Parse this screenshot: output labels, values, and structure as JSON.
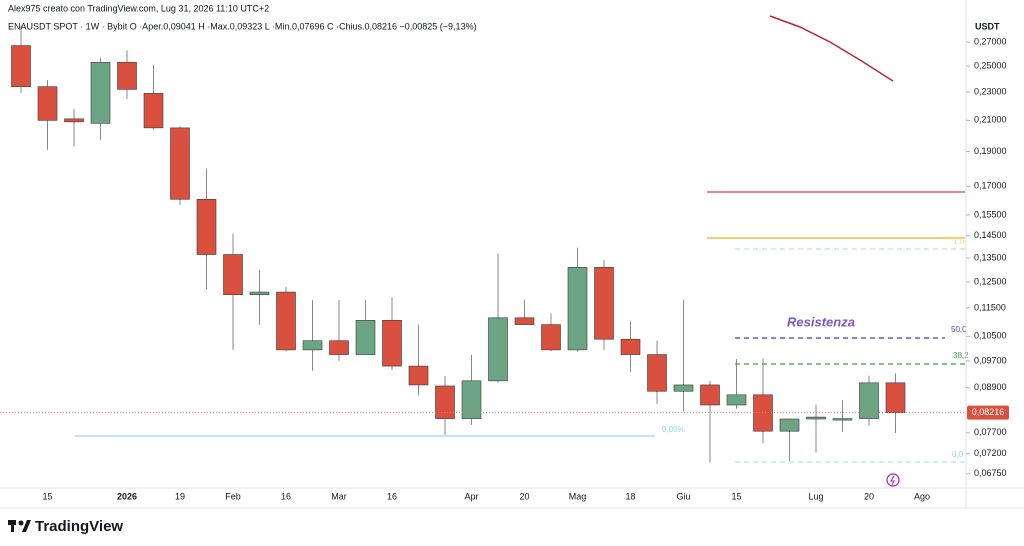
{
  "header": {
    "credit": "Alex975 creato con TradingView.com, Lug 31, 2026 11:10 UTC+2",
    "legend": "ENAUSDT SPOT · 1W · Bybit   O ·Aper.0,09041  H ·Max.0,09323  L ·Min.0,07696  C ·Chius.0,08216  −0,00825 (−9,13%)"
  },
  "chart_data": {
    "type": "candlestick",
    "y_axis_label": "USDT",
    "log_scale": true,
    "grid": false,
    "up_color": "#6ba583",
    "down_color": "#d9503f",
    "categories": [
      null,
      "15",
      null,
      null,
      "2026",
      null,
      "19",
      null,
      "Feb",
      null,
      "16",
      null,
      "Mar",
      null,
      "16",
      null,
      null,
      "Apr",
      null,
      "20",
      null,
      "Mag",
      null,
      "18",
      null,
      "Giu",
      null,
      "15",
      null,
      null,
      "Lug",
      null,
      "20",
      null,
      "Ago"
    ],
    "open": [
      0.267,
      0.234,
      0.211,
      0.208,
      0.253,
      0.229,
      0.205,
      0.163,
      0.1365,
      0.12,
      0.121,
      0.1005,
      0.1035,
      0.099,
      0.1105,
      0.0954,
      0.0895,
      0.0806,
      0.091,
      0.1114,
      0.109,
      0.1005,
      0.131,
      0.104,
      0.099,
      0.088,
      0.0898,
      0.0842,
      0.087,
      0.0774,
      0.0805,
      0.0805,
      0.0806,
      0.09041,
      null
    ],
    "high": [
      0.285,
      0.239,
      0.218,
      0.257,
      0.263,
      0.251,
      0.206,
      0.18,
      0.146,
      0.13,
      0.123,
      0.118,
      0.118,
      0.118,
      0.119,
      0.109,
      0.0924,
      0.099,
      0.137,
      0.118,
      0.113,
      0.1395,
      0.134,
      0.11,
      0.1035,
      0.118,
      0.091,
      0.0976,
      0.0978,
      0.0805,
      0.0843,
      0.0856,
      0.0925,
      0.09323,
      null
    ],
    "low": [
      0.229,
      0.191,
      0.193,
      0.197,
      0.225,
      0.204,
      0.16,
      0.122,
      0.1005,
      0.109,
      0.1,
      0.094,
      0.097,
      0.099,
      0.0942,
      0.0868,
      0.0765,
      0.079,
      0.0905,
      0.11,
      0.1,
      0.1,
      0.1005,
      0.0937,
      0.0845,
      0.0825,
      0.07,
      0.0832,
      0.0745,
      0.0703,
      0.0723,
      0.0772,
      0.0788,
      0.07696,
      null
    ],
    "close": [
      0.234,
      0.21,
      0.209,
      0.253,
      0.232,
      0.205,
      0.163,
      0.1365,
      0.12,
      0.121,
      0.1005,
      0.1035,
      0.099,
      0.1105,
      0.0954,
      0.0898,
      0.0806,
      0.091,
      0.1114,
      0.109,
      0.1005,
      0.131,
      0.104,
      0.099,
      0.088,
      0.0898,
      0.0842,
      0.087,
      0.0774,
      0.0805,
      0.081,
      0.0806,
      0.0904,
      0.08216,
      null
    ],
    "last_price_label": "0,08216",
    "ylim": [
      0.0645,
      0.2955
    ],
    "yticks": [
      {
        "value": 0.27,
        "label": "0,27000"
      },
      {
        "value": 0.25,
        "label": "0,25000"
      },
      {
        "value": 0.23,
        "label": "0,23000"
      },
      {
        "value": 0.21,
        "label": "0,21000"
      },
      {
        "value": 0.19,
        "label": "0,19000"
      },
      {
        "value": 0.17,
        "label": "0,17000"
      },
      {
        "value": 0.155,
        "label": "0,15500"
      },
      {
        "value": 0.145,
        "label": "0,14500"
      },
      {
        "value": 0.135,
        "label": "0,13500"
      },
      {
        "value": 0.125,
        "label": "0,12500"
      },
      {
        "value": 0.115,
        "label": "0,11500"
      },
      {
        "value": 0.105,
        "label": "0,10500"
      },
      {
        "value": 0.097,
        "label": "0,09700"
      },
      {
        "value": 0.089,
        "label": "0,08900"
      },
      {
        "value": 0.077,
        "label": "0,07700"
      },
      {
        "value": 0.072,
        "label": "0,07200"
      },
      {
        "value": 0.0675,
        "label": "0,06750"
      }
    ],
    "annotations": {
      "resistance": "Resistenza",
      "fib_top": "1,0",
      "fib_50": "50,0",
      "fib_38": "38,2",
      "fib_0_left": "0,00%",
      "fib_0_right": "0,0"
    }
  },
  "footer": {
    "logo": "TradingView"
  }
}
